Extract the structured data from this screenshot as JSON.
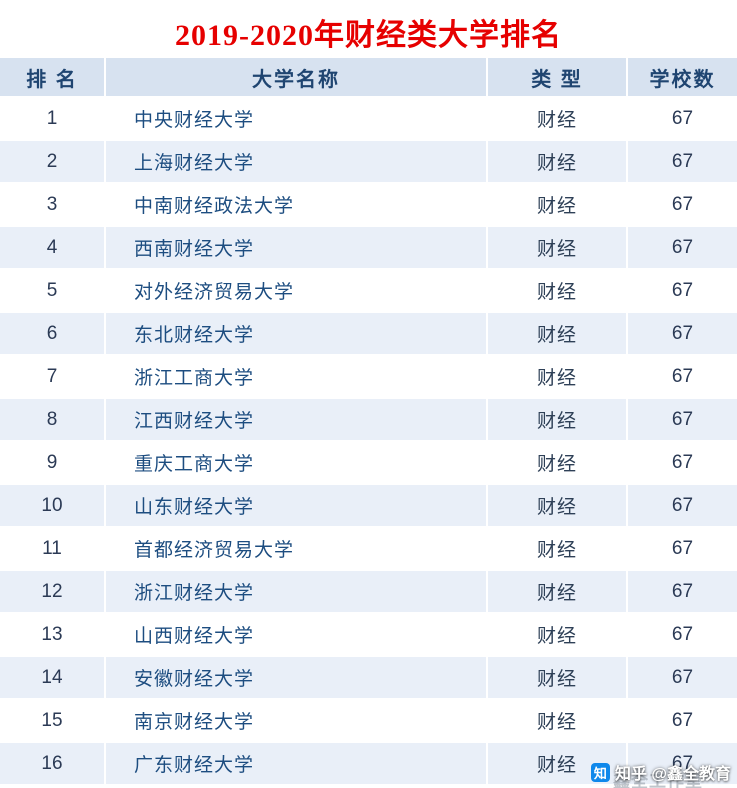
{
  "title": "2019-2020年财经类大学排名",
  "table": {
    "headers": [
      "排 名",
      "大学名称",
      "类 型",
      "学校数"
    ],
    "rows": [
      {
        "rank": "1",
        "name": "中央财经大学",
        "type": "财经",
        "count": "67"
      },
      {
        "rank": "2",
        "name": "上海财经大学",
        "type": "财经",
        "count": "67"
      },
      {
        "rank": "3",
        "name": "中南财经政法大学",
        "type": "财经",
        "count": "67"
      },
      {
        "rank": "4",
        "name": "西南财经大学",
        "type": "财经",
        "count": "67"
      },
      {
        "rank": "5",
        "name": "对外经济贸易大学",
        "type": "财经",
        "count": "67"
      },
      {
        "rank": "6",
        "name": "东北财经大学",
        "type": "财经",
        "count": "67"
      },
      {
        "rank": "7",
        "name": "浙江工商大学",
        "type": "财经",
        "count": "67"
      },
      {
        "rank": "8",
        "name": "江西财经大学",
        "type": "财经",
        "count": "67"
      },
      {
        "rank": "9",
        "name": "重庆工商大学",
        "type": "财经",
        "count": "67"
      },
      {
        "rank": "10",
        "name": "山东财经大学",
        "type": "财经",
        "count": "67"
      },
      {
        "rank": "11",
        "name": "首都经济贸易大学",
        "type": "财经",
        "count": "67"
      },
      {
        "rank": "12",
        "name": "浙江财经大学",
        "type": "财经",
        "count": "67"
      },
      {
        "rank": "13",
        "name": "山西财经大学",
        "type": "财经",
        "count": "67"
      },
      {
        "rank": "14",
        "name": "安徽财经大学",
        "type": "财经",
        "count": "67"
      },
      {
        "rank": "15",
        "name": "南京财经大学",
        "type": "财经",
        "count": "67"
      },
      {
        "rank": "16",
        "name": "广东财经大学",
        "type": "财经",
        "count": "67"
      }
    ]
  },
  "watermark": {
    "logo_glyph": "知",
    "text": "知乎 @鑫全教育",
    "ghost_text": "鑫全工作室"
  },
  "colors": {
    "title_red": "#e60000",
    "header_bg": "#d7e2f0",
    "shaded_row_bg": "#e9eff8",
    "name_text": "#1d4d80",
    "zhihu_blue": "#0f88eb"
  }
}
